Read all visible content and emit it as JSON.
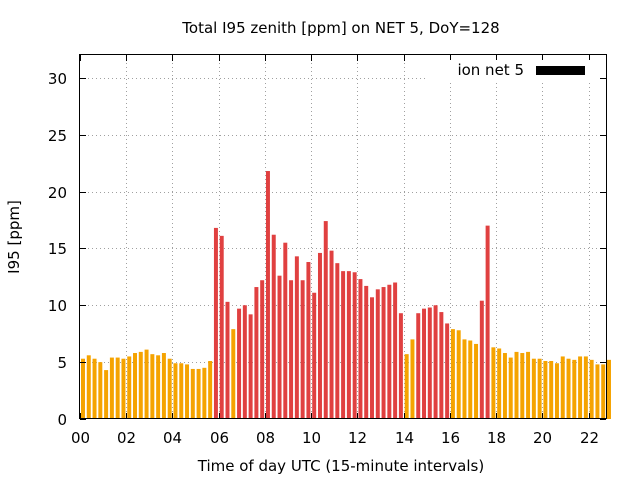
{
  "chart_data": {
    "type": "bar",
    "title": "Total I95 zenith [ppm] on NET 5, DoY=128",
    "xlabel": "Time of day UTC (15-minute intervals)",
    "ylabel": "I95 [ppm]",
    "ylim": [
      0,
      32
    ],
    "xlim": [
      0,
      22.75
    ],
    "x_ticks": [
      "00",
      "02",
      "04",
      "06",
      "08",
      "10",
      "12",
      "14",
      "16",
      "18",
      "20",
      "22"
    ],
    "y_ticks": [
      "0",
      "5",
      "10",
      "15",
      "20",
      "25",
      "30"
    ],
    "grid": true,
    "legend": {
      "label": "ion net 5",
      "position": "top-right",
      "color": "#000000"
    },
    "colors": {
      "low": "#f5a300",
      "high": "#e04040"
    },
    "bin_hours": 0.25,
    "series": [
      {
        "values": [
          5.3,
          5.6,
          5.3,
          5.0,
          4.3,
          5.4,
          5.4,
          5.3,
          5.5,
          5.8,
          5.9,
          6.1,
          5.7,
          5.6,
          5.8,
          5.3,
          4.9,
          4.9,
          4.8,
          4.4,
          4.4,
          4.5,
          5.1,
          16.8,
          16.1,
          10.3,
          7.9,
          9.7,
          10.0,
          9.2,
          11.6,
          12.2,
          21.8,
          16.2,
          12.6,
          15.5,
          12.2,
          14.3,
          12.2,
          13.8,
          11.1,
          14.6,
          17.4,
          14.8,
          13.7,
          13.0,
          13.0,
          12.9,
          12.3,
          11.7,
          10.7,
          11.4,
          11.6,
          11.8,
          12.0,
          9.3,
          5.7,
          7.0,
          9.3,
          9.7,
          9.8,
          10.0,
          9.4,
          8.4,
          7.9,
          7.8,
          7.0,
          6.9,
          6.6,
          10.4,
          17.0,
          6.3,
          6.2,
          5.8,
          5.4,
          5.9,
          5.8,
          5.9,
          5.3,
          5.3,
          5.1,
          5.1,
          4.9,
          5.5,
          5.3,
          5.2,
          5.5,
          5.5,
          5.2,
          4.8,
          4.8,
          5.2
        ],
        "levels": [
          "low",
          "low",
          "low",
          "low",
          "low",
          "low",
          "low",
          "low",
          "low",
          "low",
          "low",
          "low",
          "low",
          "low",
          "low",
          "low",
          "low",
          "low",
          "low",
          "low",
          "low",
          "low",
          "low",
          "high",
          "high",
          "high",
          "low",
          "high",
          "high",
          "high",
          "high",
          "high",
          "high",
          "high",
          "high",
          "high",
          "high",
          "high",
          "high",
          "high",
          "high",
          "high",
          "high",
          "high",
          "high",
          "high",
          "high",
          "high",
          "high",
          "high",
          "high",
          "high",
          "high",
          "high",
          "high",
          "high",
          "low",
          "low",
          "high",
          "high",
          "high",
          "high",
          "high",
          "high",
          "low",
          "low",
          "low",
          "low",
          "low",
          "high",
          "high",
          "low",
          "low",
          "low",
          "low",
          "low",
          "low",
          "low",
          "low",
          "low",
          "low",
          "low",
          "low",
          "low",
          "low",
          "low",
          "low",
          "low",
          "low",
          "low",
          "low",
          "low"
        ]
      }
    ]
  }
}
